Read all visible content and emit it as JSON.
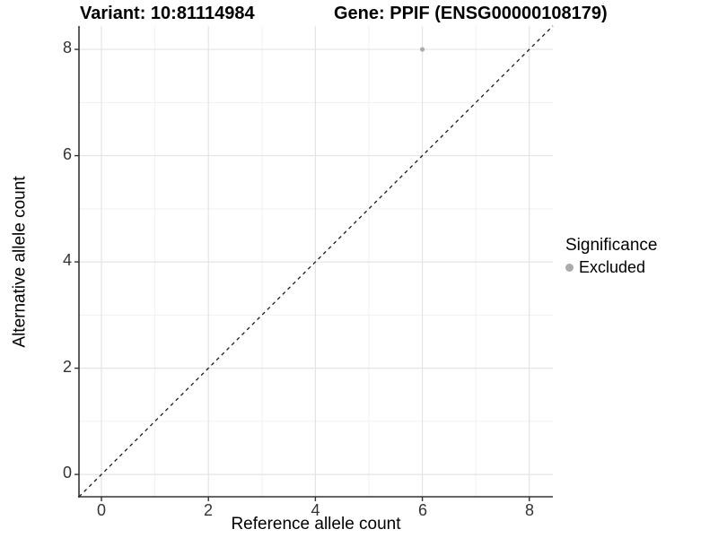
{
  "title": {
    "variant": "Variant: 10:81114984",
    "gene": "Gene: PPIF (ENSG00000108179)"
  },
  "axes": {
    "x": {
      "label": "Reference allele count",
      "ticks": [
        "0",
        "2",
        "4",
        "6",
        "8"
      ]
    },
    "y": {
      "label": "Alternative allele count",
      "ticks": [
        "0",
        "2",
        "4",
        "6",
        "8"
      ]
    }
  },
  "legend": {
    "title": "Significance",
    "items": [
      {
        "label": "Excluded",
        "color": "#ababab"
      }
    ]
  },
  "colors": {
    "background": "#ffffff",
    "grid_major": "#e4e4e4",
    "grid_minor": "#f1f1f1",
    "axis_line": "#333333",
    "tick_mark": "#333333",
    "dashed_line": "#1a1a1a",
    "point": "#ababab"
  },
  "chart_data": {
    "type": "scatter",
    "title": "Variant: 10:81114984   Gene: PPIF (ENSG00000108179)",
    "xlabel": "Reference allele count",
    "ylabel": "Alternative allele count",
    "xlim": [
      -0.42,
      8.44
    ],
    "ylim": [
      -0.42,
      8.44
    ],
    "x_major_ticks": [
      0,
      2,
      4,
      6,
      8
    ],
    "y_major_ticks": [
      0,
      2,
      4,
      6,
      8
    ],
    "x_minor_ticks": [
      1,
      3,
      5,
      7
    ],
    "y_minor_ticks": [
      1,
      3,
      5,
      7
    ],
    "grid": "major+minor",
    "legend_position": "right",
    "series": [
      {
        "name": "Excluded",
        "color": "#ababab",
        "marker": "circle",
        "points": [
          {
            "x": 6,
            "y": 8
          }
        ]
      }
    ],
    "reference_line": {
      "kind": "identity y=x",
      "style": "dashed",
      "color": "#1a1a1a"
    }
  }
}
